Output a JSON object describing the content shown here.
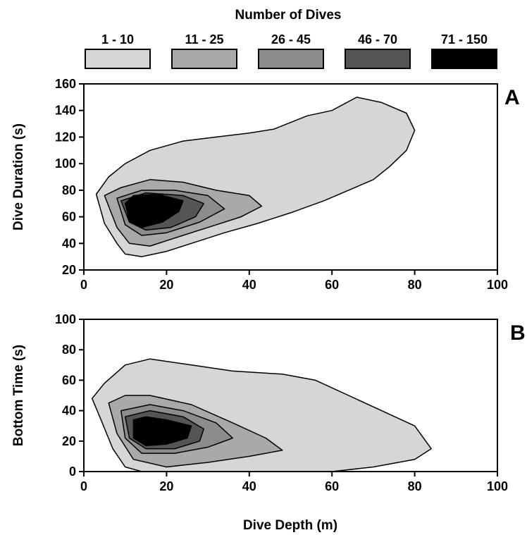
{
  "legend": {
    "title": "Number of Dives",
    "bins": [
      {
        "label": "1 - 10",
        "color": "#d6d6d6"
      },
      {
        "label": "11 - 25",
        "color": "#a9a9a9"
      },
      {
        "label": "26 - 45",
        "color": "#8c8c8c"
      },
      {
        "label": "46 - 70",
        "color": "#555555"
      },
      {
        "label": "71 - 150",
        "color": "#000000"
      }
    ]
  },
  "chart_data": [
    {
      "type": "heatmap",
      "panel": "A",
      "xlabel": "",
      "ylabel": "Dive Duration  (s)",
      "xlim": [
        0,
        100
      ],
      "ylim": [
        20,
        160
      ],
      "xticks": [
        0,
        20,
        40,
        60,
        80,
        100
      ],
      "yticks": [
        20,
        40,
        60,
        80,
        100,
        120,
        140,
        160
      ],
      "contours": [
        {
          "level": "1 - 10",
          "points": [
            [
              3,
              77
            ],
            [
              5,
              55
            ],
            [
              8,
              40
            ],
            [
              10,
              32
            ],
            [
              14,
              30
            ],
            [
              20,
              34
            ],
            [
              26,
              40
            ],
            [
              34,
              48
            ],
            [
              42,
              55
            ],
            [
              50,
              63
            ],
            [
              58,
              72
            ],
            [
              64,
              80
            ],
            [
              70,
              88
            ],
            [
              74,
              98
            ],
            [
              78,
              110
            ],
            [
              80,
              125
            ],
            [
              78,
              138
            ],
            [
              72,
              146
            ],
            [
              66,
              150
            ],
            [
              60,
              140
            ],
            [
              54,
              136
            ],
            [
              46,
              126
            ],
            [
              40,
              123
            ],
            [
              32,
              120
            ],
            [
              24,
              117
            ],
            [
              16,
              110
            ],
            [
              10,
              100
            ],
            [
              6,
              90
            ]
          ]
        },
        {
          "level": "11 - 25",
          "points": [
            [
              5,
              76
            ],
            [
              8,
              52
            ],
            [
              11,
              40
            ],
            [
              16,
              38
            ],
            [
              22,
              44
            ],
            [
              30,
              52
            ],
            [
              38,
              60
            ],
            [
              43,
              68
            ],
            [
              40,
              76
            ],
            [
              32,
              80
            ],
            [
              24,
              86
            ],
            [
              16,
              88
            ],
            [
              9,
              82
            ]
          ]
        },
        {
          "level": "26 - 45",
          "points": [
            [
              8,
              74
            ],
            [
              10,
              54
            ],
            [
              14,
              46
            ],
            [
              20,
              48
            ],
            [
              28,
              56
            ],
            [
              34,
              66
            ],
            [
              30,
              76
            ],
            [
              22,
              80
            ],
            [
              14,
              80
            ]
          ]
        },
        {
          "level": "46 - 70",
          "points": [
            [
              9,
              72
            ],
            [
              11,
              56
            ],
            [
              15,
              50
            ],
            [
              21,
              52
            ],
            [
              27,
              60
            ],
            [
              29,
              70
            ],
            [
              24,
              76
            ],
            [
              15,
              78
            ]
          ]
        },
        {
          "level": "71 - 150",
          "points": [
            [
              10,
              70
            ],
            [
              11,
              57
            ],
            [
              14,
              52
            ],
            [
              19,
              56
            ],
            [
              23,
              64
            ],
            [
              24,
              72
            ],
            [
              18,
              77
            ],
            [
              12,
              76
            ]
          ]
        }
      ]
    },
    {
      "type": "heatmap",
      "panel": "B",
      "xlabel": "Dive Depth   (m)",
      "ylabel": "Bottom Time  (s)",
      "xlim": [
        0,
        100
      ],
      "ylim": [
        0,
        100
      ],
      "xticks": [
        0,
        20,
        40,
        60,
        80,
        100
      ],
      "yticks": [
        0,
        20,
        40,
        60,
        80,
        100
      ],
      "contours": [
        {
          "level": "1 - 10",
          "points": [
            [
              2,
              48
            ],
            [
              4,
              35
            ],
            [
              7,
              15
            ],
            [
              10,
              3
            ],
            [
              14,
              0
            ],
            [
              60,
              0
            ],
            [
              70,
              3
            ],
            [
              80,
              8
            ],
            [
              84,
              15
            ],
            [
              80,
              30
            ],
            [
              72,
              40
            ],
            [
              64,
              50
            ],
            [
              56,
              60
            ],
            [
              48,
              64
            ],
            [
              36,
              66
            ],
            [
              26,
              70
            ],
            [
              16,
              74
            ],
            [
              10,
              70
            ],
            [
              5,
              58
            ]
          ]
        },
        {
          "level": "11 - 25",
          "points": [
            [
              6,
              45
            ],
            [
              8,
              25
            ],
            [
              12,
              8
            ],
            [
              20,
              3
            ],
            [
              30,
              6
            ],
            [
              40,
              10
            ],
            [
              48,
              14
            ],
            [
              44,
              22
            ],
            [
              36,
              32
            ],
            [
              26,
              44
            ],
            [
              16,
              50
            ],
            [
              10,
              50
            ]
          ]
        },
        {
          "level": "26 - 45",
          "points": [
            [
              9,
              40
            ],
            [
              10,
              22
            ],
            [
              14,
              12
            ],
            [
              22,
              12
            ],
            [
              30,
              16
            ],
            [
              36,
              22
            ],
            [
              32,
              32
            ],
            [
              24,
              40
            ],
            [
              16,
              44
            ]
          ]
        },
        {
          "level": "46 - 70",
          "points": [
            [
              10,
              36
            ],
            [
              11,
              22
            ],
            [
              15,
              15
            ],
            [
              22,
              15
            ],
            [
              28,
              20
            ],
            [
              29,
              28
            ],
            [
              24,
              36
            ],
            [
              16,
              40
            ]
          ]
        },
        {
          "level": "71 - 150",
          "points": [
            [
              12,
              34
            ],
            [
              12,
              22
            ],
            [
              15,
              17
            ],
            [
              20,
              18
            ],
            [
              25,
              22
            ],
            [
              26,
              30
            ],
            [
              20,
              34
            ],
            [
              15,
              36
            ]
          ]
        }
      ]
    }
  ]
}
